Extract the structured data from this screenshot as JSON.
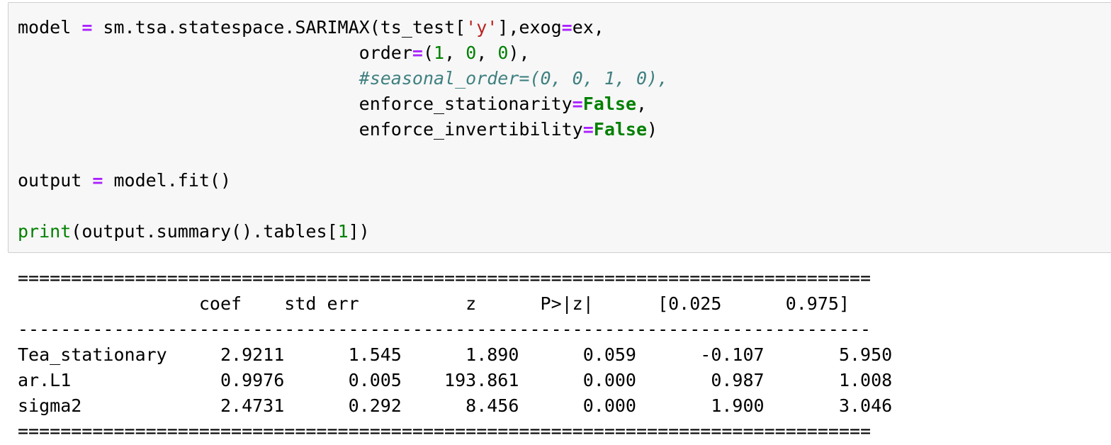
{
  "code_cell": {
    "lines": [
      [
        {
          "t": "plain",
          "v": "model "
        },
        {
          "t": "op",
          "v": "="
        },
        {
          "t": "plain",
          "v": " sm.tsa.statespace.SARIMAX(ts_test["
        },
        {
          "t": "str",
          "v": "'y'"
        },
        {
          "t": "plain",
          "v": "],exog"
        },
        {
          "t": "op",
          "v": "="
        },
        {
          "t": "plain",
          "v": "ex,"
        }
      ],
      [
        {
          "t": "plain",
          "v": "                                order"
        },
        {
          "t": "op",
          "v": "="
        },
        {
          "t": "plain",
          "v": "("
        },
        {
          "t": "num",
          "v": "1"
        },
        {
          "t": "plain",
          "v": ", "
        },
        {
          "t": "num",
          "v": "0"
        },
        {
          "t": "plain",
          "v": ", "
        },
        {
          "t": "num",
          "v": "0"
        },
        {
          "t": "plain",
          "v": "),"
        }
      ],
      [
        {
          "t": "plain",
          "v": "                                "
        },
        {
          "t": "comment",
          "v": "#seasonal_order=(0, 0, 1, 0),"
        }
      ],
      [
        {
          "t": "plain",
          "v": "                                enforce_stationarity"
        },
        {
          "t": "op",
          "v": "="
        },
        {
          "t": "kw",
          "v": "False"
        },
        {
          "t": "plain",
          "v": ","
        }
      ],
      [
        {
          "t": "plain",
          "v": "                                enforce_invertibility"
        },
        {
          "t": "op",
          "v": "="
        },
        {
          "t": "kw",
          "v": "False"
        },
        {
          "t": "plain",
          "v": ")"
        }
      ],
      [],
      [
        {
          "t": "plain",
          "v": "output "
        },
        {
          "t": "op",
          "v": "="
        },
        {
          "t": "plain",
          "v": " model.fit()"
        }
      ],
      [],
      [
        {
          "t": "builtin",
          "v": "print"
        },
        {
          "t": "plain",
          "v": "(output.summary().tables["
        },
        {
          "t": "num",
          "v": "1"
        },
        {
          "t": "plain",
          "v": "])"
        }
      ]
    ]
  },
  "output": {
    "rule_double": "================================================================================",
    "rule_single": "--------------------------------------------------------------------------------",
    "header": "                 coef    std err          z      P>|z|      [0.025      0.975]",
    "rows": [
      "Tea_stationary     2.9211      1.545      1.890      0.059      -0.107       5.950",
      "ar.L1              0.9976      0.005    193.861      0.000       0.987       1.008",
      "sigma2             2.4731      0.292      8.456      0.000       1.900       3.046"
    ]
  },
  "colors": {
    "cell_background": "#f7f7f7",
    "cell_border": "#cfcfcf",
    "operator": "#aa22ff",
    "string": "#ba2121",
    "number": "#008000",
    "keyword": "#008000",
    "comment": "#408080"
  }
}
